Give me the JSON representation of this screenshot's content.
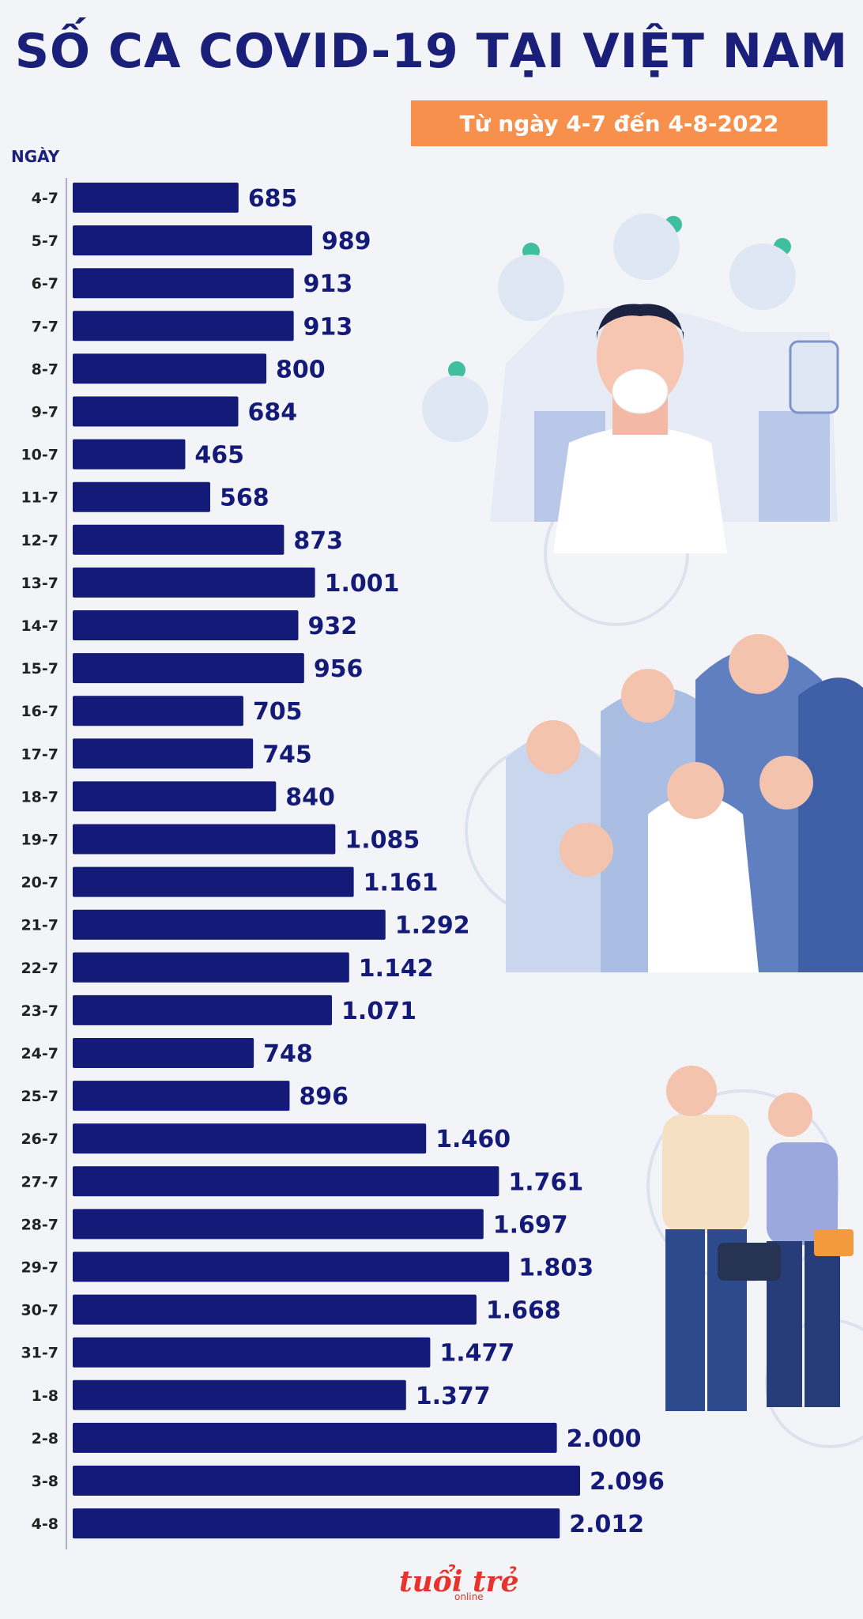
{
  "header": {
    "title": "SỐ CA COVID-19 TẠI VIỆT NAM",
    "subtitle": "Từ ngày 4-7 đến 4-8-2022",
    "subtitle_bg": "#f7904c"
  },
  "logo": {
    "text": "tuổi trẻ",
    "sub": "online"
  },
  "colors": {
    "bar": "#141a78",
    "label": "#141a78",
    "title": "#1a1f7a"
  },
  "chart_data": {
    "type": "bar",
    "orientation": "horizontal",
    "xlabel": "",
    "ylabel": "NGÀY",
    "categories": [
      "4-7",
      "5-7",
      "6-7",
      "7-7",
      "8-7",
      "9-7",
      "10-7",
      "11-7",
      "12-7",
      "13-7",
      "14-7",
      "15-7",
      "16-7",
      "17-7",
      "18-7",
      "19-7",
      "20-7",
      "21-7",
      "22-7",
      "23-7",
      "24-7",
      "25-7",
      "26-7",
      "27-7",
      "28-7",
      "29-7",
      "30-7",
      "31-7",
      "1-8",
      "2-8",
      "3-8",
      "4-8"
    ],
    "values": [
      685,
      989,
      913,
      913,
      800,
      684,
      465,
      568,
      873,
      1001,
      932,
      956,
      705,
      745,
      840,
      1085,
      1161,
      1292,
      1142,
      1071,
      748,
      896,
      1460,
      1761,
      1697,
      1803,
      1668,
      1477,
      1377,
      2000,
      2096,
      2012
    ],
    "value_labels": [
      "685",
      "989",
      "913",
      "913",
      "800",
      "684",
      "465",
      "568",
      "873",
      "1.001",
      "932",
      "956",
      "705",
      "745",
      "840",
      "1.085",
      "1.161",
      "1.292",
      "1.142",
      "1.071",
      "748",
      "896",
      "1.460",
      "1.761",
      "1.697",
      "1.803",
      "1.668",
      "1.477",
      "1.377",
      "2.000",
      "2.096",
      "2.012"
    ],
    "grid": false,
    "legend": "none"
  }
}
